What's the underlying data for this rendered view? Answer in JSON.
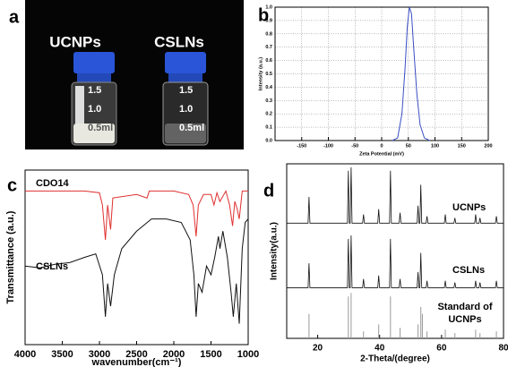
{
  "panel_labels": [
    "a",
    "b",
    "c",
    "d"
  ],
  "photo": {
    "labels": [
      "UCNPs",
      "CSLNs"
    ],
    "graduations": [
      "1.5",
      "1.0",
      "0.5ml"
    ]
  },
  "chart_data": [
    {
      "type": "line",
      "xlabel": "Zeta Potential (mV)",
      "ylabel": "Intensity (a.u.)",
      "xlim": [
        -200,
        200
      ],
      "ylim": [
        0,
        1
      ],
      "xticks": [
        -150,
        -100,
        -50,
        0,
        50,
        100,
        150,
        200
      ],
      "yticks": [
        {
          "value": 0,
          "label": "0.0"
        },
        {
          "value": 0.1,
          "label": "0.1"
        },
        {
          "value": 0.2,
          "label": "0.2"
        },
        {
          "value": 0.3,
          "label": "0.3"
        },
        {
          "value": 0.4,
          "label": "0.4"
        },
        {
          "value": 0.5,
          "label": "0.5"
        },
        {
          "value": 0.6,
          "label": "0.6"
        },
        {
          "value": 0.7,
          "label": "0.7"
        },
        {
          "value": 0.8,
          "label": "0.8"
        },
        {
          "value": 0.9,
          "label": "0.9"
        },
        {
          "value": 1,
          "label": "1.0"
        }
      ],
      "grid": true,
      "series": [
        {
          "color": "#3a4fc4",
          "x": [
            20,
            30,
            38,
            44,
            48,
            52,
            56,
            60,
            66,
            72,
            80,
            90
          ],
          "values": [
            0,
            0.02,
            0.2,
            0.55,
            0.85,
            1.0,
            0.95,
            0.7,
            0.35,
            0.12,
            0.02,
            0
          ]
        }
      ]
    },
    {
      "type": "line",
      "xlabel": "wavenumber(cm⁻¹)",
      "ylabel": "Transmittance (a.u.)",
      "xlim": [
        4000,
        1000
      ],
      "ylim": [
        0,
        100
      ],
      "xticks": [
        4000,
        3500,
        3000,
        2500,
        2000,
        1500,
        1000
      ],
      "grid": false,
      "series": [
        {
          "name": "CDO14",
          "color": "#e03030",
          "x": [
            4000,
            3600,
            3200,
            3000,
            2960,
            2920,
            2890,
            2850,
            2820,
            2500,
            2360,
            2330,
            2000,
            1800,
            1740,
            1700,
            1670,
            1600,
            1500,
            1460,
            1420,
            1380,
            1300,
            1250,
            1210,
            1180,
            1150,
            1120,
            1080,
            1000
          ],
          "values": [
            88,
            88,
            88,
            87,
            80,
            60,
            80,
            66,
            84,
            86,
            84,
            88,
            88,
            86,
            80,
            62,
            80,
            86,
            86,
            80,
            87,
            82,
            88,
            80,
            68,
            82,
            78,
            72,
            88,
            88
          ]
        },
        {
          "name": "CSLNs",
          "color": "#111111",
          "x": [
            4000,
            3800,
            3600,
            3400,
            3200,
            3050,
            2960,
            2920,
            2890,
            2850,
            2800,
            2700,
            2500,
            2300,
            2100,
            1900,
            1780,
            1730,
            1700,
            1670,
            1620,
            1560,
            1500,
            1450,
            1400,
            1380,
            1340,
            1280,
            1230,
            1200,
            1160,
            1120,
            1080,
            1040,
            1000
          ],
          "values": [
            45,
            44,
            46,
            47,
            50,
            52,
            40,
            16,
            35,
            22,
            40,
            55,
            65,
            72,
            72,
            70,
            60,
            40,
            16,
            35,
            30,
            45,
            40,
            50,
            62,
            55,
            65,
            50,
            30,
            16,
            35,
            12,
            55,
            70,
            72
          ]
        }
      ]
    },
    {
      "type": "line",
      "xlabel": "2-Theta/(degree)",
      "ylabel": "Intensity(a.u.)",
      "xlim": [
        10,
        80
      ],
      "ylim": [
        0,
        100
      ],
      "xticks": [
        20,
        40,
        60,
        80
      ],
      "grid": false,
      "x": [
        10,
        16.9,
        17.2,
        17.5,
        29.6,
        29.9,
        30.2,
        30.5,
        30.8,
        31.1,
        34.5,
        34.8,
        35.1,
        39.4,
        39.7,
        40.0,
        43.2,
        43.5,
        43.8,
        46.3,
        46.6,
        46.9,
        52.1,
        52.4,
        52.7,
        53.0,
        53.3,
        53.6,
        55.0,
        55.3,
        55.6,
        60.9,
        61.2,
        61.5,
        64.0,
        64.3,
        64.6,
        70.7,
        71.0,
        71.3,
        72.1,
        72.4,
        72.7,
        77.4,
        77.7,
        78.0,
        80
      ],
      "series": [
        {
          "name": "UCNPs",
          "color": "#111111",
          "values": [
            66,
            66,
            81,
            66,
            66,
            96,
            66,
            66,
            98,
            66,
            66,
            71,
            66,
            66,
            74,
            66,
            66,
            96,
            66,
            66,
            72,
            66,
            66,
            76,
            66,
            66,
            88,
            66,
            66,
            70,
            66,
            66,
            71,
            66,
            66,
            69,
            66,
            66,
            71,
            66,
            66,
            69,
            66,
            66,
            70,
            66,
            66
          ]
        },
        {
          "name": "CSLNs",
          "color": "#111111",
          "values": [
            29,
            29,
            43,
            29,
            29,
            57,
            29,
            29,
            59,
            29,
            29,
            34,
            29,
            29,
            36,
            29,
            29,
            57,
            29,
            29,
            34,
            29,
            29,
            38,
            29,
            29,
            49,
            29,
            29,
            33,
            29,
            29,
            33,
            29,
            29,
            32,
            29,
            29,
            33,
            29,
            29,
            32,
            29,
            29,
            33,
            29,
            29
          ]
        },
        {
          "name": "Standard of UCNPs",
          "color": "#999999",
          "style": "stick",
          "x": [
            17.2,
            29.9,
            30.8,
            34.8,
            39.7,
            43.5,
            46.6,
            52.4,
            53.3,
            53.8,
            55.3,
            61.2,
            64.3,
            71.0,
            72.4,
            77.7
          ],
          "values": [
            14,
            24,
            26,
            4,
            8,
            24,
            6,
            8,
            18,
            14,
            4,
            5,
            3,
            5,
            3,
            4
          ]
        }
      ]
    }
  ]
}
